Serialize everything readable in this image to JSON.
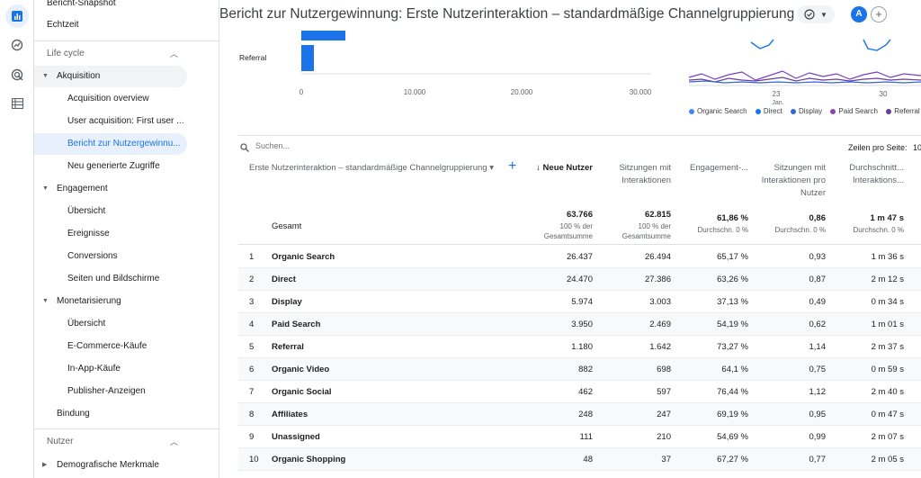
{
  "header": {
    "title": "Bericht zur Nutzergewinnung: Erste Nutzerinteraktion – standardmäßige Channelgruppierung",
    "avatar_letter": "A",
    "add_label": "+"
  },
  "sidebar": {
    "items": [
      {
        "label": "Bericht-Snapshot"
      },
      {
        "label": "Echtzeit"
      },
      {
        "label": "Life cycle"
      },
      {
        "label": "Akquisition"
      },
      {
        "label": "Acquisition overview"
      },
      {
        "label": "User acquisition: First user ..."
      },
      {
        "label": "Bericht zur Nutzergewinnu..."
      },
      {
        "label": "Neu generierte Zugriffe"
      },
      {
        "label": "Engagement"
      },
      {
        "label": "Übersicht"
      },
      {
        "label": "Ereignisse"
      },
      {
        "label": "Conversions"
      },
      {
        "label": "Seiten und Bildschirme"
      },
      {
        "label": "Monetarisierung"
      },
      {
        "label": "Übersicht"
      },
      {
        "label": "E-Commerce-Käufe"
      },
      {
        "label": "In-App-Käufe"
      },
      {
        "label": "Publisher-Anzeigen"
      },
      {
        "label": "Bindung"
      },
      {
        "label": "Nutzer"
      },
      {
        "label": "Demografische Merkmale"
      }
    ]
  },
  "bar_chart": {
    "category_label": "Referral",
    "ticks": [
      "0",
      "10.000",
      "20.000",
      "30.000"
    ]
  },
  "line_chart": {
    "x_ticks": [
      "23",
      "30"
    ],
    "x_sub": "Jan."
  },
  "legend": [
    {
      "label": "Organic Search",
      "color": "#4285f4"
    },
    {
      "label": "Direct",
      "color": "#1a73e8"
    },
    {
      "label": "Display",
      "color": "#3367d6"
    },
    {
      "label": "Paid Search",
      "color": "#8e44ad"
    },
    {
      "label": "Referral",
      "color": "#6a3d9a"
    }
  ],
  "table": {
    "search_placeholder": "Suchen...",
    "rows_per_page_label": "Zeilen pro Seite:",
    "rows_per_page_value": "10",
    "dimension_header": "Erste Nutzerinteraktion – standardmäßige Channelgruppierung ▾",
    "columns": [
      "↓ Neue Nutzer",
      "Sitzungen mit Interaktionen",
      "Engagement-...",
      "Sitzungen mit Interaktionen pro Nutzer",
      "Durchschnitt... Interaktions..."
    ],
    "totals": {
      "label": "Gesamt",
      "new_users": "63.766",
      "new_users_sub": "100 % der Gesamtsumme",
      "sessions": "62.815",
      "sessions_sub": "100 % der Gesamtsumme",
      "engagement": "61,86 %",
      "engagement_sub": "Durchschn. 0 %",
      "sess_per_user": "0,86",
      "sess_per_user_sub": "Durchschn. 0 %",
      "avg_time": "1 m 47 s",
      "avg_time_sub": "Durchschn. 0 %"
    },
    "rows": [
      {
        "idx": "1",
        "name": "Organic Search",
        "new_users": "26.437",
        "sessions": "26.494",
        "engagement": "65,17 %",
        "spu": "0,93",
        "avg": "1 m 36 s"
      },
      {
        "idx": "2",
        "name": "Direct",
        "new_users": "24.470",
        "sessions": "27.386",
        "engagement": "63,26 %",
        "spu": "0,87",
        "avg": "2 m 12 s"
      },
      {
        "idx": "3",
        "name": "Display",
        "new_users": "5.974",
        "sessions": "3.003",
        "engagement": "37,13 %",
        "spu": "0,49",
        "avg": "0 m 34 s"
      },
      {
        "idx": "4",
        "name": "Paid Search",
        "new_users": "3.950",
        "sessions": "2.469",
        "engagement": "54,19 %",
        "spu": "0,62",
        "avg": "1 m 01 s"
      },
      {
        "idx": "5",
        "name": "Referral",
        "new_users": "1.180",
        "sessions": "1.642",
        "engagement": "73,27 %",
        "spu": "1,14",
        "avg": "2 m 37 s"
      },
      {
        "idx": "6",
        "name": "Organic Video",
        "new_users": "882",
        "sessions": "698",
        "engagement": "64,1 %",
        "spu": "0,75",
        "avg": "0 m 59 s"
      },
      {
        "idx": "7",
        "name": "Organic Social",
        "new_users": "462",
        "sessions": "597",
        "engagement": "76,44 %",
        "spu": "1,12",
        "avg": "2 m 40 s"
      },
      {
        "idx": "8",
        "name": "Affiliates",
        "new_users": "248",
        "sessions": "247",
        "engagement": "69,19 %",
        "spu": "0,95",
        "avg": "0 m 47 s"
      },
      {
        "idx": "9",
        "name": "Unassigned",
        "new_users": "111",
        "sessions": "210",
        "engagement": "54,69 %",
        "spu": "0,99",
        "avg": "2 m 07 s"
      },
      {
        "idx": "10",
        "name": "Organic Shopping",
        "new_users": "48",
        "sessions": "37",
        "engagement": "67,27 %",
        "spu": "0,77",
        "avg": "2 m 05 s"
      }
    ]
  }
}
